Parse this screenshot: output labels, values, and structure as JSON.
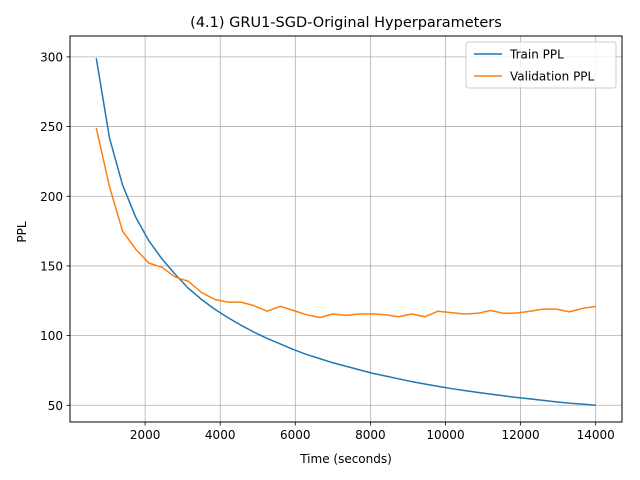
{
  "chart_data": {
    "type": "line",
    "title": "(4.1) GRU1-SGD-Original Hyperparameters",
    "xlabel": "Time (seconds)",
    "ylabel": "PPL",
    "xlim": [
      0,
      14700
    ],
    "ylim": [
      38,
      315
    ],
    "xticks": [
      2000,
      4000,
      6000,
      8000,
      10000,
      12000,
      14000
    ],
    "yticks": [
      50,
      100,
      150,
      200,
      250,
      300
    ],
    "grid": true,
    "legend_position": "top-right",
    "series": [
      {
        "name": "Train PPL",
        "color": "#1f77b4",
        "x": [
          700,
          1050,
          1400,
          1750,
          2100,
          2450,
          2800,
          3150,
          3500,
          3850,
          4200,
          4550,
          4900,
          5250,
          5600,
          5950,
          6300,
          6650,
          7000,
          7350,
          7700,
          8050,
          8400,
          8750,
          9100,
          9450,
          9800,
          10150,
          10500,
          10850,
          11200,
          11550,
          11900,
          12250,
          12600,
          12950,
          13300,
          13650,
          14000
        ],
        "values": [
          299,
          242,
          208,
          185,
          168,
          155,
          144,
          134,
          126,
          119,
          113,
          107.5,
          102.5,
          98,
          94,
          90,
          86.5,
          83.5,
          80.5,
          78,
          75.5,
          73,
          71,
          69,
          67,
          65.3,
          63.6,
          62,
          60.6,
          59.3,
          58,
          56.8,
          55.6,
          54.6,
          53.5,
          52.4,
          51.5,
          50.8,
          50
        ]
      },
      {
        "name": "Validation PPL",
        "color": "#ff7f0e",
        "x": [
          700,
          1050,
          1400,
          1750,
          2100,
          2450,
          2800,
          3150,
          3500,
          3850,
          4200,
          4550,
          4900,
          5250,
          5600,
          5950,
          6300,
          6650,
          7000,
          7350,
          7700,
          8050,
          8400,
          8750,
          9100,
          9450,
          9800,
          10150,
          10500,
          10850,
          11200,
          11550,
          11900,
          12250,
          12600,
          12950,
          13300,
          13650,
          14000
        ],
        "values": [
          249,
          207,
          175,
          162,
          152,
          149,
          142,
          139,
          131,
          126,
          124,
          124,
          121.5,
          117.5,
          121,
          118,
          115,
          113,
          115.5,
          114.5,
          115.5,
          115.5,
          115,
          113.5,
          115.5,
          113.5,
          117.5,
          116.5,
          115.5,
          116,
          118,
          116,
          116.2,
          117.5,
          119,
          119,
          117,
          119.5,
          121
        ]
      }
    ]
  }
}
